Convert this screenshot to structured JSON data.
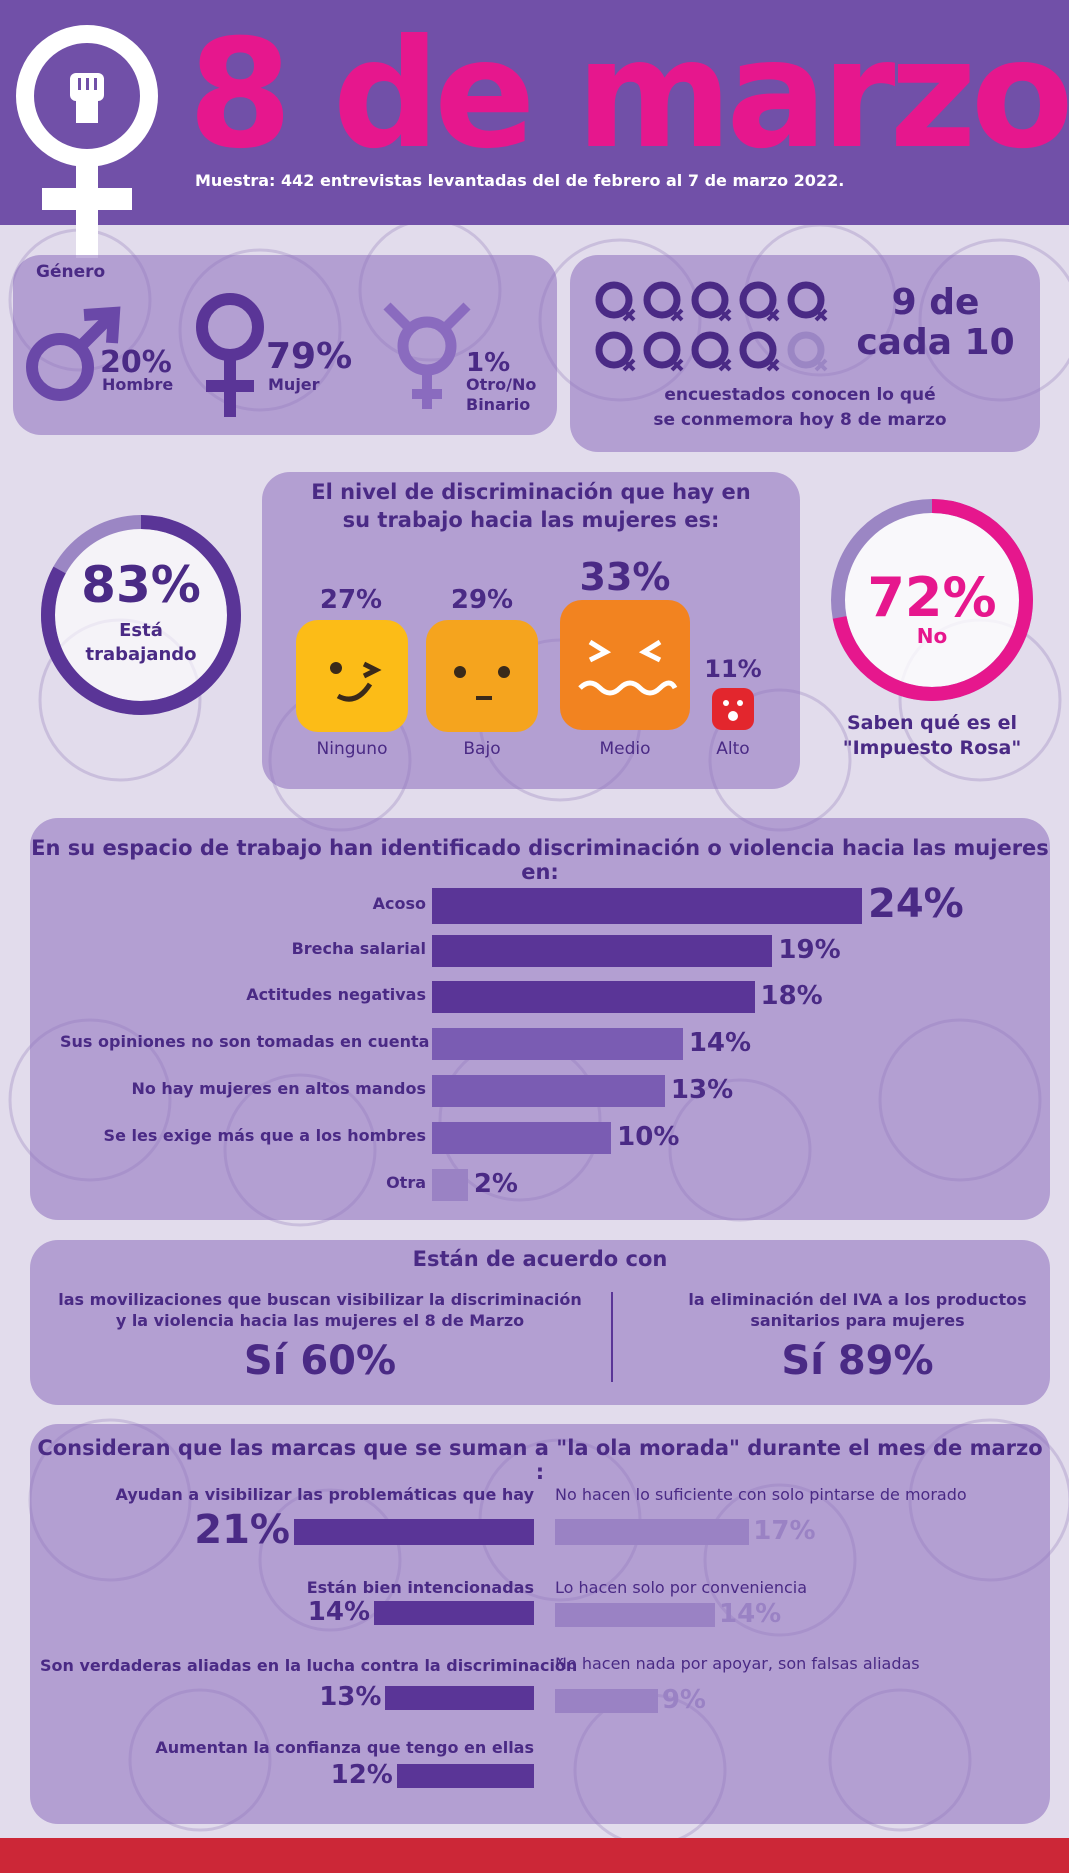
{
  "header": {
    "title": "8 de marzo",
    "subtitle": "Muestra: 442 entrevistas levantadas del de febrero al 7 de marzo 2022."
  },
  "gender": {
    "label": "Género",
    "items": [
      {
        "pct": "20%",
        "name": "Hombre",
        "icon": "male-symbol-icon"
      },
      {
        "pct": "79%",
        "name": "Mujer",
        "icon": "female-symbol-icon"
      },
      {
        "pct": "1%",
        "name": "Otro/No Binario",
        "name_line1": "Otro/No",
        "name_line2": "Binario",
        "icon": "transgender-symbol-icon"
      }
    ]
  },
  "awareness": {
    "big_line1": "9 de",
    "big_line2": "cada 10",
    "caption_line1": "encuestados conocen lo qué",
    "caption_line2": "se conmemora hoy 8 de marzo",
    "filled": 9,
    "total": 10
  },
  "working": {
    "pct": "83%",
    "line1": "Está",
    "line2": "trabajando",
    "value": 83
  },
  "discrimination_level": {
    "title_line1": "El nivel de discriminación que hay en",
    "title_line2": "su trabajo hacia las mujeres es:",
    "items": [
      {
        "pct": "27%",
        "name": "Ninguno",
        "icon": "wink-face-icon"
      },
      {
        "pct": "29%",
        "name": "Bajo",
        "icon": "neutral-face-icon"
      },
      {
        "pct": "33%",
        "name": "Medio",
        "icon": "distressed-face-icon"
      },
      {
        "pct": "11%",
        "name": "Alto",
        "icon": "shocked-face-icon"
      }
    ]
  },
  "pink_tax": {
    "pct": "72%",
    "sub": "No",
    "caption_line1": "Saben qué es el",
    "caption_line2": "\"Impuesto Rosa\"",
    "value": 72
  },
  "chart_data": [
    {
      "type": "bar",
      "title": "En su espacio de trabajo han identificado discriminación o violencia hacia las mujeres en:",
      "categories": [
        "Acoso",
        "Brecha salarial",
        "Actitudes negativas",
        "Sus opiniones no son tomadas en cuenta",
        "No hay mujeres en altos mandos",
        "Se les exige más que a los hombres",
        "Otra"
      ],
      "values": [
        24,
        19,
        18,
        14,
        13,
        10,
        2
      ],
      "labels": [
        "24%",
        "19%",
        "18%",
        "14%",
        "13%",
        "10%",
        "2%"
      ]
    },
    {
      "type": "bar",
      "title": "Consideran que las marcas que se suman a \"la ola morada\" durante el mes de marzo :",
      "positive": {
        "categories": [
          "Ayudan a visibilizar las problemáticas que hay",
          "Están bien intencionadas",
          "Son verdaderas aliadas en la lucha contra la discriminación",
          "Aumentan la confianza que tengo en ellas"
        ],
        "values": [
          21,
          14,
          13,
          12
        ],
        "labels": [
          "21%",
          "14%",
          "13%",
          "12%"
        ]
      },
      "negative": {
        "categories": [
          "No hacen lo suficiente con solo pintarse de morado",
          "Lo hacen solo por conveniencia",
          "No hacen nada por apoyar, son falsas aliadas"
        ],
        "values": [
          17,
          14,
          9
        ],
        "labels": [
          "17%",
          "14%",
          "9%"
        ]
      }
    }
  ],
  "agreement": {
    "title": "Están de acuerdo con",
    "left_line1": "las movilizaciones que buscan visibilizar la discriminación",
    "left_line2": "y la violencia hacia las mujeres el 8 de Marzo",
    "left_value": "Sí 60%",
    "right_line1": "la eliminación del IVA a los productos",
    "right_line2": "sanitarios para mujeres",
    "right_value": "Sí 89%"
  },
  "colors": {
    "purple": "#7150a8",
    "dark_purple": "#4a2a85",
    "bar": "#5a3597",
    "light_bar": "#9a82c4",
    "pink": "#e6178d",
    "red": "#cc2737"
  }
}
